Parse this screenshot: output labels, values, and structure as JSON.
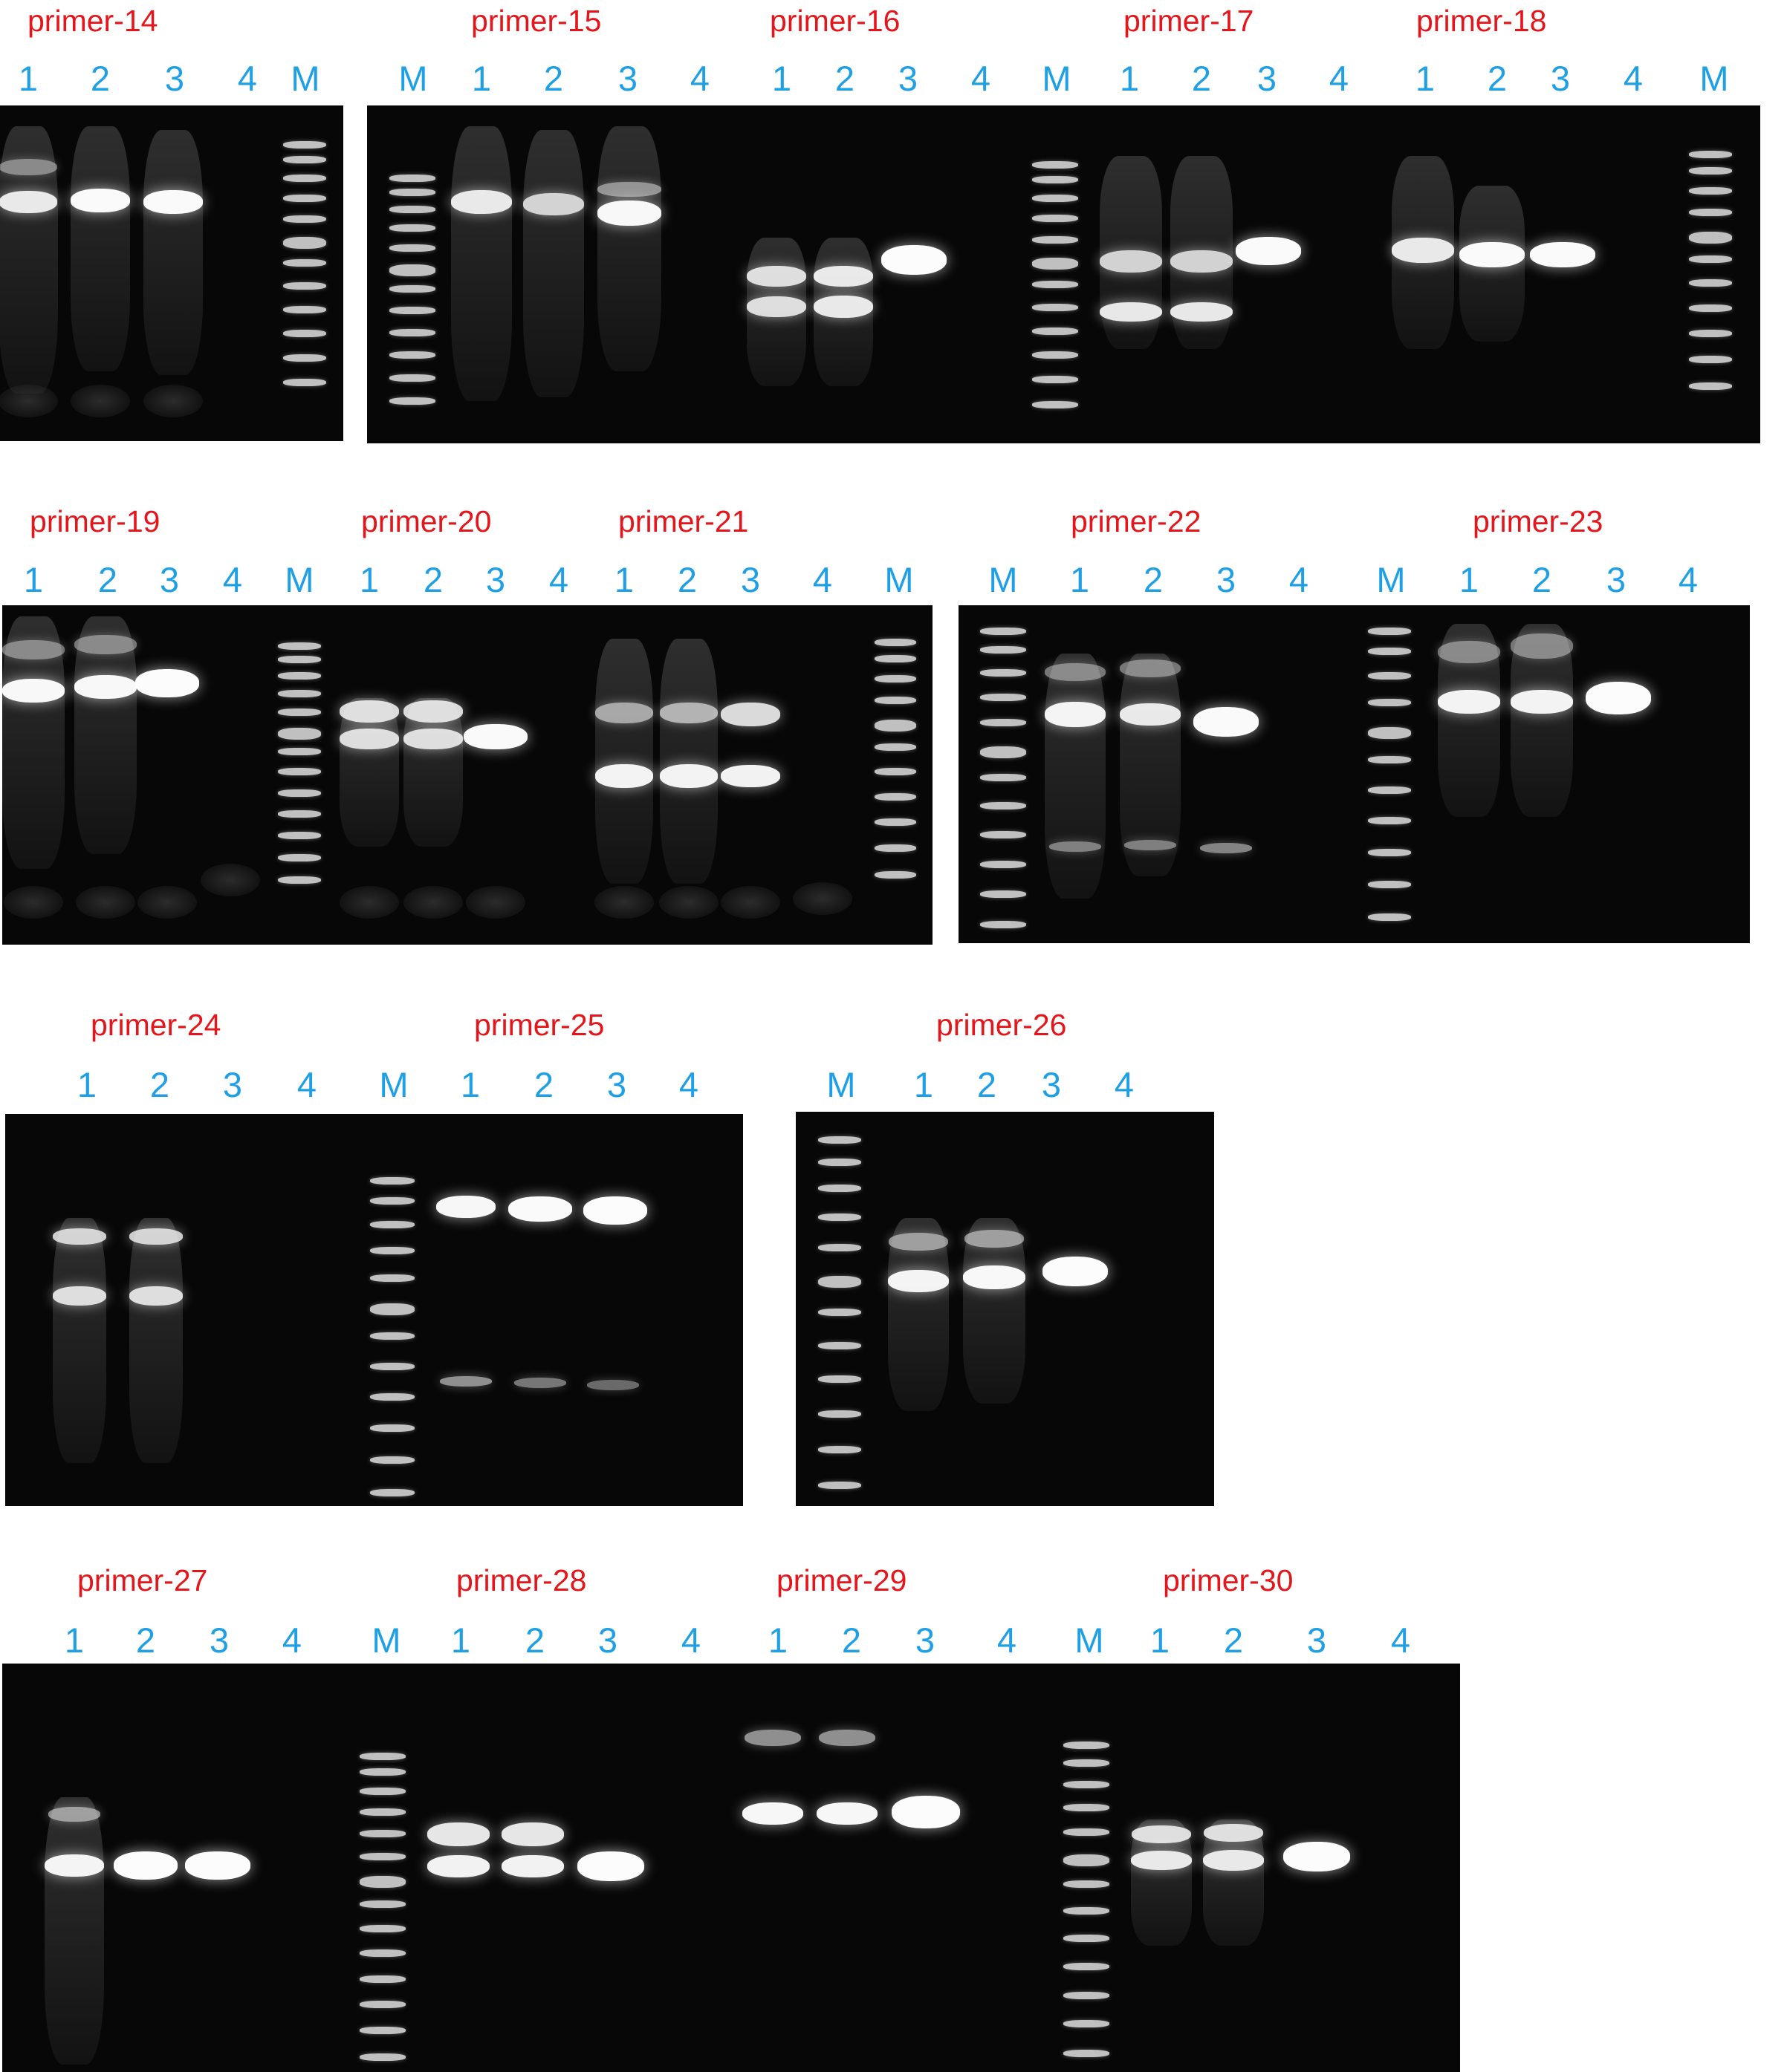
{
  "titles": {
    "p14": "primer-14",
    "p15": "primer-15",
    "p16": "primer-16",
    "p17": "primer-17",
    "p18": "primer-18",
    "p19": "primer-19",
    "p20": "primer-20",
    "p21": "primer-21",
    "p22": "primer-22",
    "p23": "primer-23",
    "p24": "primer-24",
    "p25": "primer-25",
    "p26": "primer-26",
    "p27": "primer-27",
    "p28": "primer-28",
    "p29": "primer-29",
    "p30": "primer-30"
  },
  "lane_labels": {
    "one": "1",
    "two": "2",
    "three": "3",
    "four": "4",
    "marker": "M"
  },
  "colors": {
    "title": "#e4151b",
    "lane_label": "#1f9fe4",
    "gel_background": "#070707",
    "band": "#ffffff"
  }
}
